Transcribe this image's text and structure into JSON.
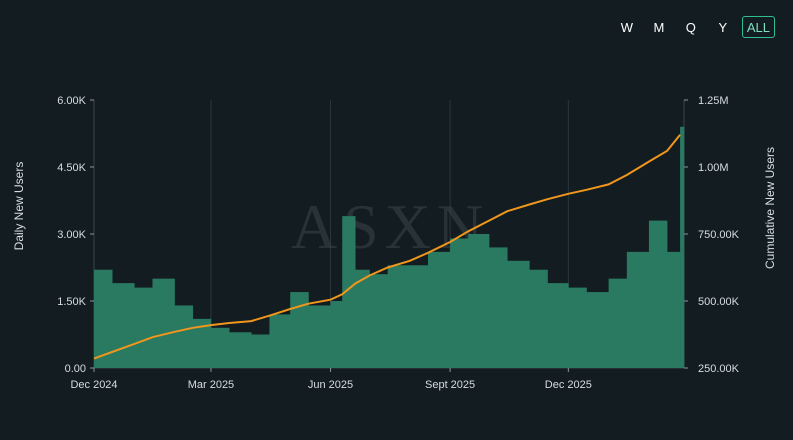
{
  "range_selector": {
    "buttons": [
      {
        "label": "W",
        "active": false
      },
      {
        "label": "M",
        "active": false
      },
      {
        "label": "Q",
        "active": false
      },
      {
        "label": "Y",
        "active": false
      },
      {
        "label": "ALL",
        "active": true
      }
    ]
  },
  "watermark": "ASXN",
  "chart_data": {
    "type": "bar+line",
    "title": "",
    "xlabel": "",
    "ylabel_left": "Daily New Users",
    "ylabel_right": "Cumulative New Users",
    "ylim_left": [
      0,
      6000
    ],
    "ylim_right": [
      250000,
      1250000
    ],
    "yticks_left": [
      "0.00",
      "1.50K",
      "3.00K",
      "4.50K",
      "6.00K"
    ],
    "yticks_right": [
      "250.00K",
      "500.00K",
      "750.00K",
      "1.00M",
      "1.25M"
    ],
    "xticks": [
      "Dec 2024",
      "Mar 2025",
      "Jun 2025",
      "Sept 2025",
      "Dec 2025"
    ],
    "x_range": [
      "2024-12-01",
      "2026-02-28"
    ],
    "colors": {
      "bars": "#2a7a62",
      "line": "#f0961c",
      "grid": "#2c373d"
    },
    "series": [
      {
        "name": "Daily New Users",
        "kind": "bar",
        "x": [
          "2024-12-01",
          "2024-12-15",
          "2025-01-01",
          "2025-01-15",
          "2025-02-01",
          "2025-02-15",
          "2025-03-01",
          "2025-03-15",
          "2025-04-01",
          "2025-04-15",
          "2025-05-01",
          "2025-05-15",
          "2025-06-01",
          "2025-06-10",
          "2025-06-20",
          "2025-07-01",
          "2025-07-15",
          "2025-08-01",
          "2025-08-15",
          "2025-09-01",
          "2025-09-15",
          "2025-10-01",
          "2025-10-15",
          "2025-11-01",
          "2025-11-15",
          "2025-12-01",
          "2025-12-15",
          "2026-01-01",
          "2026-01-15",
          "2026-02-01",
          "2026-02-15",
          "2026-02-25"
        ],
        "values": [
          2200,
          1900,
          1800,
          2000,
          1400,
          1100,
          900,
          800,
          750,
          1200,
          1700,
          1400,
          1500,
          3400,
          2200,
          2100,
          2300,
          2300,
          2600,
          2900,
          3000,
          2700,
          2400,
          2200,
          1900,
          1800,
          1700,
          2000,
          2600,
          3300,
          2600,
          5400
        ]
      },
      {
        "name": "Cumulative New Users",
        "kind": "line",
        "x": [
          "2024-12-01",
          "2024-12-15",
          "2025-01-01",
          "2025-01-15",
          "2025-02-01",
          "2025-02-15",
          "2025-03-01",
          "2025-03-15",
          "2025-04-01",
          "2025-04-15",
          "2025-05-01",
          "2025-05-15",
          "2025-06-01",
          "2025-06-10",
          "2025-06-20",
          "2025-07-01",
          "2025-07-15",
          "2025-08-01",
          "2025-08-15",
          "2025-09-01",
          "2025-09-15",
          "2025-10-01",
          "2025-10-15",
          "2025-11-01",
          "2025-11-15",
          "2025-12-01",
          "2025-12-15",
          "2026-01-01",
          "2026-01-15",
          "2026-02-01",
          "2026-02-15",
          "2026-02-25"
        ],
        "values": [
          285000,
          310000,
          340000,
          365000,
          385000,
          400000,
          410000,
          418000,
          425000,
          445000,
          470000,
          490000,
          505000,
          525000,
          565000,
          595000,
          625000,
          650000,
          680000,
          720000,
          760000,
          800000,
          835000,
          860000,
          880000,
          900000,
          915000,
          935000,
          970000,
          1020000,
          1060000,
          1120000
        ]
      }
    ]
  }
}
